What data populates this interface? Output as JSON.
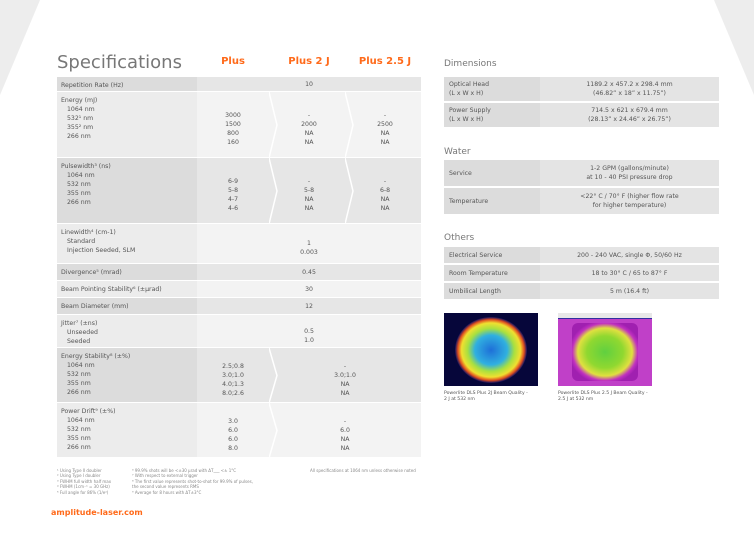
{
  "title": "Specifications",
  "columns": [
    "Plus",
    "Plus 2 J",
    "Plus 2.5 J"
  ],
  "rows": [
    {
      "label": "Repetition Rate (Hz)",
      "subs": [],
      "span": true,
      "span_vals": [
        "10"
      ]
    },
    {
      "label": "Energy (mJ)",
      "subs": [
        "1064 nm",
        "532¹ nm",
        "355² nm",
        "266 nm"
      ],
      "span": false,
      "vals": [
        [
          "3000",
          "1500",
          "800",
          "160"
        ],
        [
          "-",
          "2000",
          "NA",
          "NA"
        ],
        [
          "-",
          "2500",
          "NA",
          "NA"
        ]
      ]
    },
    {
      "label": "Pulsewidth³ (ns)",
      "subs": [
        "1064 nm",
        "532 nm",
        "355 nm",
        "266 nm"
      ],
      "span": false,
      "vals": [
        [
          "6-9",
          "5-8",
          "4-7",
          "4-6"
        ],
        [
          "-",
          "5-8",
          "NA",
          "NA"
        ],
        [
          "-",
          "6-8",
          "NA",
          "NA"
        ]
      ]
    },
    {
      "label": "Linewidth⁴ (cm-1)",
      "subs": [
        "Standard",
        "Injection Seeded, SLM"
      ],
      "span": true,
      "span_vals": [
        "1",
        "0.003"
      ]
    },
    {
      "label": "Divergence⁵ (mrad)",
      "subs": [],
      "span": true,
      "span_vals": [
        "0.45"
      ]
    },
    {
      "label": "Beam Pointing Stability⁶ (±μrad)",
      "subs": [],
      "span": true,
      "span_vals": [
        "30"
      ]
    },
    {
      "label": "Beam Diameter (mm)",
      "subs": [],
      "span": true,
      "span_vals": [
        "12"
      ]
    },
    {
      "label": "Jitter⁷ (±ns)",
      "subs": [
        "Unseeded",
        "Seeded"
      ],
      "span": true,
      "span_vals": [
        "0.5",
        "1.0"
      ]
    },
    {
      "label": "Energy Stability⁸ (±%)",
      "subs": [
        "1064 nm",
        "532 nm",
        "355 nm",
        "266 nm"
      ],
      "span": false,
      "split": true,
      "vals": [
        [
          "2.5;0.8",
          "3.0;1.0",
          "4.0;1.3",
          "8.0;2.6"
        ],
        [
          "-",
          "3.0;1.0",
          "NA",
          "NA"
        ]
      ]
    },
    {
      "label": "Power Drift⁹ (±%)",
      "subs": [
        "1064 nm",
        "532 nm",
        "355 nm",
        "266 nm"
      ],
      "span": false,
      "split": true,
      "vals": [
        [
          "3.0",
          "6.0",
          "6.0",
          "8.0"
        ],
        [
          "-",
          "6.0",
          "NA",
          "NA"
        ]
      ]
    }
  ],
  "dimensions": {
    "title": "Dimensions",
    "rows": [
      {
        "label": "Optical Head\n(L x W x H)",
        "value": "1189.2 x 457.2 x 298.4 mm\n(46.82” x 18” x 11.75”)"
      },
      {
        "label": "Power Supply\n(L x W x H)",
        "value": "714.5 x 621 x 679.4 mm\n(28.13” x 24.46” x 26.75”)"
      }
    ]
  },
  "water": {
    "title": "Water",
    "rows": [
      {
        "label": "Service",
        "value": "1-2 GPM (gallons/minute)\nat 10 - 40 PSI pressure drop"
      },
      {
        "label": "Temperature",
        "value": "<22° C / 70° F (higher flow rate\nfor higher temperature)"
      }
    ]
  },
  "others": {
    "title": "Others",
    "rows": [
      {
        "label": "Electrical Service",
        "value": "200 - 240 VAC, single Φ, 50/60 Hz"
      },
      {
        "label": "Room Temperature",
        "value": "18 to 30° C / 65 to 87° F"
      },
      {
        "label": "Umbilical Length",
        "value": "5 m (16.4 ft)"
      }
    ]
  },
  "beam_captions": [
    "Powerlite DLS Plus 2J Beam Quality -\n2 J at 532 nm",
    "Powerlite DLS Plus 2.5 J Beam Quality -\n2.5 J at 532 nm"
  ],
  "footnotes_left": [
    "¹ Using Type II doubler",
    "² Using Type I doubler",
    "³ FWHM full width half max",
    "⁴ FWHM (1cm⁻¹ = 30 GHz)",
    "⁵ Full angle for 86% (1/e²)"
  ],
  "footnotes_mid": [
    "⁶ 99.9% shots will be <±30 μrad with ΔT___ <± 1°C",
    "⁷ With respect to external trigger",
    "⁸ The first value represents shot-to-shot for 99.9% of pulses,",
    "   the second value represents RMS",
    "⁹ Average for 8 hours with ΔT±3°C"
  ],
  "footnote_right": "All specifications at 1064 nm unless otherwise noted",
  "website": "amplitude-laser.com"
}
